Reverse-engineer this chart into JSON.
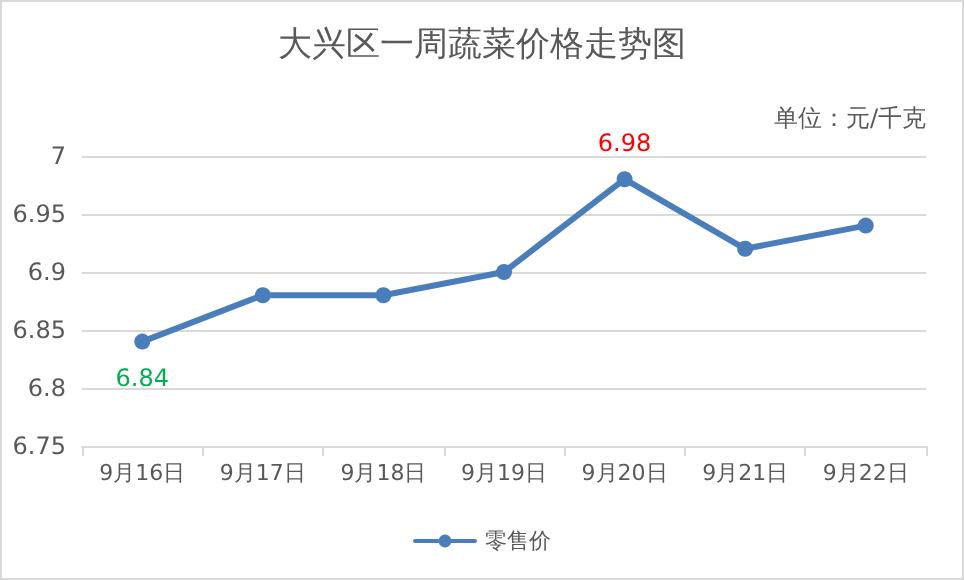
{
  "chart_data": {
    "type": "line",
    "title": "大兴区一周蔬菜价格走势图",
    "annotations": [
      "单位：元/千克"
    ],
    "categories": [
      "9月16日",
      "9月17日",
      "9月18日",
      "9月19日",
      "9月20日",
      "9月21日",
      "9月22日"
    ],
    "series": [
      {
        "name": "零售价",
        "color": "#4a7ebb",
        "values": [
          6.84,
          6.88,
          6.88,
          6.9,
          6.98,
          6.92,
          6.94
        ],
        "value_labels": [
          "6.84",
          null,
          null,
          null,
          "6.98",
          null,
          null
        ]
      }
    ],
    "ylim": [
      6.75,
      7
    ],
    "yticks": [
      6.75,
      6.8,
      6.85,
      6.9,
      6.95,
      7
    ],
    "grid": "y",
    "legend": "bottom",
    "marker": "circle",
    "line_style": "solid"
  }
}
